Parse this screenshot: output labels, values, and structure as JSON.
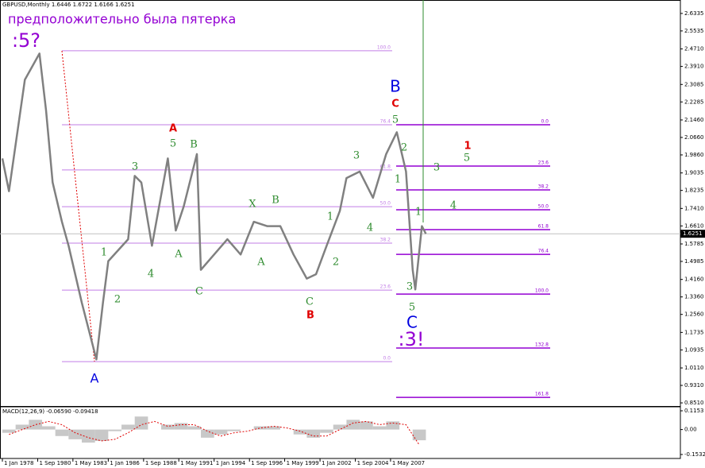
{
  "chart_data": [
    {
      "type": "line",
      "title": "GBPUSD,Monthly  1.6446 1.6722 1.6166 1.6251",
      "color": "#808080",
      "x": [
        1978.0,
        1978.5,
        1979.7,
        1980.8,
        1981.3,
        1981.8,
        1982.5,
        1983.0,
        1984.0,
        1985.1,
        1985.6,
        1986.0,
        1987.5,
        1988.0,
        1988.5,
        1989.3,
        1990.5,
        1991.1,
        1991.7,
        1992.7,
        1993.0,
        1994.0,
        1995.0,
        1996.0,
        1997.0,
        1998.0,
        1999.0,
        2000.0,
        2001.0,
        2001.7,
        2002.5,
        2003.5,
        2004.0,
        2005.0,
        2006.0,
        2007.0,
        2007.8,
        2008.5,
        2009.0,
        2009.2,
        2009.7,
        2010.0
      ],
      "values": [
        1.97,
        1.82,
        2.33,
        2.45,
        2.19,
        1.86,
        1.68,
        1.57,
        1.31,
        1.05,
        1.31,
        1.5,
        1.6,
        1.89,
        1.86,
        1.57,
        1.97,
        1.64,
        1.75,
        1.99,
        1.46,
        1.53,
        1.6,
        1.53,
        1.68,
        1.66,
        1.66,
        1.53,
        1.42,
        1.44,
        1.57,
        1.73,
        1.88,
        1.91,
        1.79,
        1.99,
        2.09,
        1.91,
        1.46,
        1.37,
        1.66,
        1.6251
      ],
      "last_price": 1.6251,
      "xlim": [
        1977.82,
        2029.23
      ],
      "xticks": [
        {
          "value": 1978.0,
          "label": "1 Jan 1978"
        },
        {
          "value": 1980.67,
          "label": "1 Sep 1980"
        },
        {
          "value": 1983.33,
          "label": "1 May 1983"
        },
        {
          "value": 1986.0,
          "label": "1 Jan 1986"
        },
        {
          "value": 1988.67,
          "label": "1 Sep 1988"
        },
        {
          "value": 1991.33,
          "label": "1 May 1991"
        },
        {
          "value": 1994.0,
          "label": "1 Jan 1994"
        },
        {
          "value": 1996.67,
          "label": "1 Sep 1996"
        },
        {
          "value": 1999.33,
          "label": "1 May 1999"
        },
        {
          "value": 2002.0,
          "label": "1 Jan 2002"
        },
        {
          "value": 2004.67,
          "label": "1 Sep 2004"
        },
        {
          "value": 2007.33,
          "label": "1 May 2007"
        }
      ],
      "ylim": [
        0.833,
        2.695
      ],
      "yticks": [
        2.6335,
        {
          "value": 2.5535,
          "label": "2.5535"
        },
        {
          "value": 2.471,
          "label": "2.4710"
        },
        {
          "value": 2.391,
          "label": "2.3910"
        },
        2.3085,
        2.2285,
        {
          "value": 2.146,
          "label": "2.1460"
        },
        {
          "value": 2.066,
          "label": "2.0660"
        },
        {
          "value": 1.986,
          "label": "1.9860"
        },
        1.9035,
        1.8235,
        {
          "value": 1.741,
          "label": "1.7410"
        },
        {
          "value": 1.661,
          "label": "1.6610"
        },
        1.5785,
        1.4985,
        {
          "value": 1.416,
          "label": "1.4160"
        },
        {
          "value": 1.336,
          "label": "1.3360"
        },
        {
          "value": 1.256,
          "label": "1.2560"
        },
        1.1735,
        1.0935,
        {
          "value": 1.011,
          "label": "1.0110"
        },
        {
          "value": 0.931,
          "label": "0.9310"
        },
        {
          "value": 0.851,
          "label": "0.8510"
        }
      ],
      "fibonacci": [
        {
          "color": "#c27ee6",
          "level_labels": [
            "100.0",
            "76.4",
            "61.8",
            "50.0",
            "38.2",
            "23.6",
            "0.0"
          ],
          "prices": [
            2.4625,
            2.124,
            1.917,
            1.749,
            1.582,
            1.367,
            1.04
          ]
        },
        {
          "color": "#9400d3",
          "level_labels": [
            "0.0",
            "23.6",
            "38.2",
            "50.0",
            "61.8",
            "76.4",
            "100.0",
            "132.8",
            "161.8"
          ],
          "prices": [
            2.124,
            1.935,
            1.826,
            1.735,
            1.644,
            1.531,
            1.349,
            1.102,
            0.876
          ]
        }
      ],
      "annotations": [
        {
          "text": "предположительно была пятерка",
          "color": "#9400d3"
        },
        {
          "text": ":5?",
          "color": "#9400d3"
        },
        {
          "text": "A",
          "color": "#e00000"
        },
        {
          "text": "5",
          "color": "#2e8b2e"
        },
        {
          "text": "B",
          "color": "#2e8b2e"
        },
        {
          "text": "3",
          "color": "#2e8b2e"
        },
        {
          "text": "1",
          "color": "#2e8b2e"
        },
        {
          "text": "2",
          "color": "#2e8b2e"
        },
        {
          "text": "4",
          "color": "#2e8b2e"
        },
        {
          "text": "A",
          "color": "#2e8b2e"
        },
        {
          "text": "C",
          "color": "#2e8b2e"
        },
        {
          "text": "X",
          "color": "#2e8b2e"
        },
        {
          "text": "B",
          "color": "#2e8b2e"
        },
        {
          "text": "A",
          "color": "#2e8b2e"
        },
        {
          "text": "1",
          "color": "#2e8b2e"
        },
        {
          "text": "2",
          "color": "#2e8b2e"
        },
        {
          "text": "4",
          "color": "#2e8b2e"
        },
        {
          "text": "3",
          "color": "#2e8b2e"
        },
        {
          "text": "C",
          "color": "#2e8b2e"
        },
        {
          "text": "B",
          "color": "#e00000"
        },
        {
          "text": "B",
          "color": "#0000e0"
        },
        {
          "text": "C",
          "color": "#e00000"
        },
        {
          "text": "5",
          "color": "#2e8b2e"
        },
        {
          "text": "2",
          "color": "#2e8b2e"
        },
        {
          "text": "1",
          "color": "#2e8b2e"
        },
        {
          "text": "3",
          "color": "#2e8b2e"
        },
        {
          "text": "1",
          "color": "#e00000"
        },
        {
          "text": "5",
          "color": "#2e8b2e"
        },
        {
          "text": "4",
          "color": "#2e8b2e"
        },
        {
          "text": "1",
          "color": "#2e8b2e"
        },
        {
          "text": "3",
          "color": "#2e8b2e"
        },
        {
          "text": "5",
          "color": "#2e8b2e"
        },
        {
          "text": "C",
          "color": "#0000e0"
        },
        {
          "text": ":3!",
          "color": "#9400d3"
        },
        {
          "text": "A",
          "color": "#0000e0"
        }
      ]
    },
    {
      "type": "bar",
      "title": "MACD(12,26,9) -0.06590 -0.09418",
      "x": [
        1978,
        1979,
        1980,
        1981,
        1982,
        1983,
        1984,
        1985,
        1986,
        1987,
        1988,
        1989,
        1990,
        1991,
        1992,
        1993,
        1994,
        1995,
        1996,
        1997,
        1998,
        1999,
        2000,
        2001,
        2002,
        2003,
        2004,
        2005,
        2006,
        2007,
        2008,
        2009
      ],
      "series": [
        {
          "type": "bar",
          "color": "#c8c8c8",
          "values": [
            -0.02,
            0.03,
            0.06,
            0.02,
            -0.04,
            -0.06,
            -0.08,
            -0.07,
            -0.01,
            0.03,
            0.08,
            0.0,
            0.03,
            0.04,
            0.02,
            -0.05,
            -0.03,
            -0.01,
            0.0,
            0.02,
            0.02,
            0.0,
            -0.03,
            -0.05,
            -0.02,
            0.03,
            0.06,
            0.05,
            0.02,
            0.05,
            0.0,
            -0.0659
          ]
        },
        {
          "type": "line",
          "color": "#e00000",
          "values": [
            -0.03,
            0.0,
            0.03,
            0.05,
            0.03,
            -0.02,
            -0.05,
            -0.07,
            -0.06,
            -0.02,
            0.03,
            0.05,
            0.02,
            0.03,
            0.03,
            -0.01,
            -0.04,
            -0.02,
            -0.01,
            0.01,
            0.02,
            0.01,
            -0.01,
            -0.04,
            -0.04,
            0.0,
            0.04,
            0.05,
            0.03,
            0.04,
            0.03,
            -0.09418
          ]
        }
      ],
      "ylim": [
        -0.1777,
        0.1397
      ],
      "yticks": [
        0.1153,
        {
          "value": 0,
          "label": "0.00"
        },
        -0.15324
      ]
    }
  ]
}
